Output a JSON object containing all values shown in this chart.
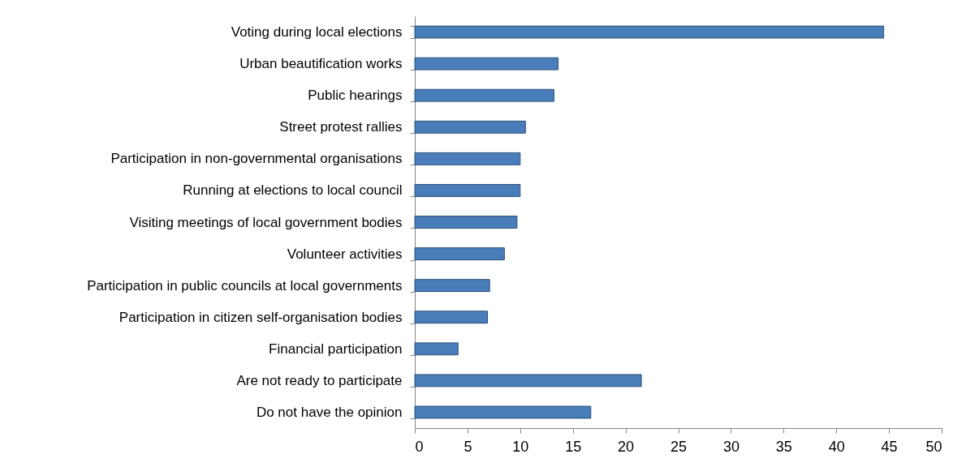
{
  "chart_data": {
    "type": "bar",
    "orientation": "horizontal",
    "categories": [
      "Voting during local elections",
      "Urban beautification works",
      "Public hearings",
      "Street protest rallies",
      "Participation in non-governmental organisations",
      "Running at elections to local council",
      "Visiting meetings of local government bodies",
      "Volunteer activities",
      "Participation in public councils at local governments",
      "Participation in citizen self-organisation bodies",
      "Financial participation",
      "Are not ready  to participate",
      "Do not have the opinion"
    ],
    "values": [
      44.5,
      13.6,
      13.2,
      10.5,
      10.0,
      10.0,
      9.7,
      8.5,
      7.1,
      6.9,
      4.1,
      21.5,
      16.7
    ],
    "color": "#4a7ebb",
    "xlim": [
      0,
      50
    ],
    "xticks": [
      0,
      5,
      10,
      15,
      20,
      25,
      30,
      35,
      40,
      45,
      50
    ],
    "grid": false
  }
}
